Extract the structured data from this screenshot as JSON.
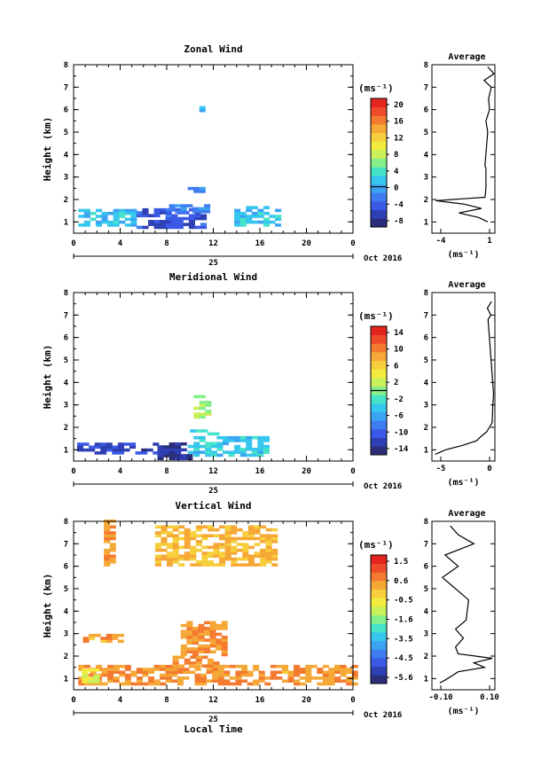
{
  "colors": {
    "scale": [
      "#2b2f7a",
      "#2f3fb4",
      "#3a59e6",
      "#3e7cf2",
      "#3ba3f2",
      "#36c6ee",
      "#45e4c8",
      "#85f08a",
      "#c8f05a",
      "#f2ec3e",
      "#f7cf3c",
      "#f6a837",
      "#f47a30",
      "#ee4a2a",
      "#e3241f"
    ]
  },
  "date_label": "Oct 2016",
  "day_label": "25",
  "x_ticks": [
    "0",
    "4",
    "8",
    "12",
    "16",
    "20",
    "0"
  ],
  "y_ticks": [
    "1",
    "2",
    "3",
    "4",
    "5",
    "6",
    "7",
    "8"
  ],
  "ylabel": "Height (km)",
  "xlabel_bottom": "Local Time",
  "unit_label": "(ms⁻¹)",
  "avg_title": "Average",
  "avg_unit": "(ms⁻¹)",
  "chart_data": [
    {
      "type": "heatmap",
      "title": "Zonal Wind",
      "colorbar_ticks": [
        "20",
        "16",
        "12",
        "8",
        "4",
        "0",
        "-4",
        "-8"
      ],
      "clim": [
        -10,
        22
      ],
      "zero_line": 0,
      "xlim": [
        0,
        24
      ],
      "ylim": [
        0.5,
        8
      ],
      "avg_xticks": [
        "-4",
        "1"
      ],
      "avg_xlim": [
        -5,
        2
      ],
      "patches": [
        {
          "x": [
            0.4,
            5.4
          ],
          "y": [
            0.8,
            1.5
          ],
          "value": 1.5
        },
        {
          "x": [
            5.4,
            11.2
          ],
          "y": [
            0.7,
            1.5
          ],
          "value": -5
        },
        {
          "x": [
            8.2,
            11.6
          ],
          "y": [
            1.4,
            1.75
          ],
          "value": -2
        },
        {
          "x": [
            13.8,
            17.6
          ],
          "y": [
            0.8,
            1.6
          ],
          "value": 1.5
        },
        {
          "x": [
            9.8,
            11.1
          ],
          "y": [
            2.3,
            2.55
          ],
          "value": -2
        },
        {
          "x": [
            10.8,
            11.1
          ],
          "y": [
            5.9,
            6.05
          ],
          "value": 1
        }
      ],
      "avg_profile": {
        "height": [
          1.0,
          1.2,
          1.4,
          1.6,
          1.8,
          1.95,
          2.05,
          2.1,
          2.5,
          3.0,
          3.4,
          3.5,
          5.0,
          5.5,
          6.0,
          6.5,
          7.0,
          7.3,
          7.6,
          7.9
        ],
        "value": [
          1.2,
          0.2,
          -2.0,
          0.5,
          -1.5,
          -4.6,
          -0.8,
          0.9,
          1.0,
          1.0,
          1.0,
          0.9,
          1.2,
          1.0,
          1.4,
          1.3,
          1.6,
          0.8,
          1.9,
          1.2
        ]
      }
    },
    {
      "type": "heatmap",
      "title": "Meridional Wind",
      "colorbar_ticks": [
        "14",
        "10",
        "6",
        "2",
        "-2",
        "-6",
        "-10",
        "-14"
      ],
      "clim": [
        -16,
        16
      ],
      "zero_line": 0,
      "xlim": [
        0,
        24
      ],
      "ylim": [
        0.5,
        8
      ],
      "avg_xticks": [
        "-5",
        "0"
      ],
      "avg_xlim": [
        -9,
        0.2
      ],
      "patches": [
        {
          "x": [
            0.3,
            7.2
          ],
          "y": [
            0.8,
            1.3
          ],
          "value": -12
        },
        {
          "x": [
            7.2,
            9.8
          ],
          "y": [
            0.55,
            1.3
          ],
          "value": -14
        },
        {
          "x": [
            9.8,
            16.5
          ],
          "y": [
            0.7,
            1.5
          ],
          "value": -4
        },
        {
          "x": [
            10.3,
            11.4
          ],
          "y": [
            2.4,
            3.4
          ],
          "value": 1
        },
        {
          "x": [
            10.0,
            12.2
          ],
          "y": [
            1.65,
            1.85
          ],
          "value": -3
        }
      ],
      "avg_profile": {
        "height": [
          0.8,
          1.0,
          1.2,
          1.4,
          1.6,
          1.8,
          2.0,
          2.2,
          3.0,
          3.5,
          6.8,
          7.0,
          7.3,
          7.6
        ],
        "value": [
          -8.5,
          -7.0,
          -4.5,
          -2.5,
          -1.8,
          -1.0,
          -0.6,
          -0.2,
          -0.1,
          0.0,
          -0.8,
          -0.4,
          -0.9,
          -0.3
        ]
      }
    },
    {
      "type": "heatmap",
      "title": "Vertical Wind",
      "colorbar_ticks": [
        "1.5",
        "0.6",
        "-0.5",
        "-1.6",
        "-3.5",
        "-4.5",
        "-5.6"
      ],
      "clim": [
        -6.5,
        2.2
      ],
      "zero_line": null,
      "xlim": [
        0,
        24
      ],
      "ylim": [
        0.5,
        8
      ],
      "avg_xticks": [
        "-0.10",
        "0.10"
      ],
      "avg_xlim": [
        -0.12,
        0.12
      ],
      "patches": [
        {
          "x": [
            0.4,
            24
          ],
          "y": [
            0.7,
            1.5
          ],
          "value": 0.4
        },
        {
          "x": [
            8.5,
            12.5
          ],
          "y": [
            1.5,
            2.0
          ],
          "value": 0.5
        },
        {
          "x": [
            9.2,
            12.8
          ],
          "y": [
            2.0,
            3.5
          ],
          "value": 0.4
        },
        {
          "x": [
            0.8,
            4.2
          ],
          "y": [
            2.6,
            2.9
          ],
          "value": 0.2
        },
        {
          "x": [
            7.0,
            17.5
          ],
          "y": [
            6.0,
            7.8
          ],
          "value": -0.1
        },
        {
          "x": [
            2.6,
            3.2
          ],
          "y": [
            6.0,
            8.0
          ],
          "value": 0.4
        },
        {
          "x": [
            0.7,
            2.0
          ],
          "y": [
            0.8,
            1.4
          ],
          "value": -1.2
        }
      ],
      "avg_profile": {
        "height": [
          0.8,
          1.0,
          1.3,
          1.5,
          1.7,
          1.9,
          2.1,
          2.4,
          2.8,
          3.2,
          3.6,
          4.5,
          5.5,
          6.0,
          6.5,
          7.0,
          7.4,
          7.8
        ],
        "value": [
          -0.09,
          -0.06,
          -0.02,
          0.08,
          0.04,
          0.11,
          -0.02,
          -0.03,
          0.0,
          -0.03,
          0.01,
          0.02,
          -0.08,
          -0.02,
          -0.07,
          0.04,
          -0.02,
          -0.05
        ]
      }
    }
  ]
}
